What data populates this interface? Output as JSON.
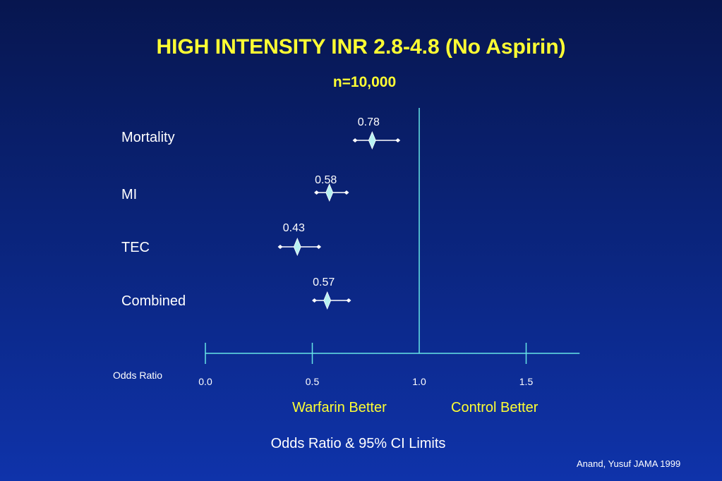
{
  "title": "HIGH INTENSITY INR 2.8-4.8 (No Aspirin)",
  "subtitle": "n=10,000",
  "axis_name": "Odds Ratio",
  "left_note": "Warfarin Better",
  "right_note": "Control Better",
  "xlabel": "Odds Ratio & 95% CI Limits",
  "citation": "Anand, Yusuf JAMA 1999",
  "colors": {
    "background_top": "#07164f",
    "background_bottom": "#0f33aa",
    "title": "#ffff33",
    "axis": "#66e6e6",
    "marker": "#b8f2f2",
    "text": "#ffffff"
  },
  "chart_data": {
    "type": "forest",
    "xlim": [
      0.0,
      1.75
    ],
    "xticks": [
      0.0,
      0.5,
      1.0,
      1.5
    ],
    "xtick_labels": [
      "0.0",
      "0.5",
      "1.0",
      "1.5"
    ],
    "reference_line": 1.0,
    "rows": [
      {
        "label": "Mortality",
        "or": 0.78,
        "or_label": "0.78",
        "ci_low": 0.7,
        "ci_high": 0.9
      },
      {
        "label": "MI",
        "or": 0.58,
        "or_label": "0.58",
        "ci_low": 0.52,
        "ci_high": 0.66
      },
      {
        "label": "TEC",
        "or": 0.43,
        "or_label": "0.43",
        "ci_low": 0.35,
        "ci_high": 0.53
      },
      {
        "label": "Combined",
        "or": 0.57,
        "or_label": "0.57",
        "ci_low": 0.51,
        "ci_high": 0.67
      }
    ]
  }
}
